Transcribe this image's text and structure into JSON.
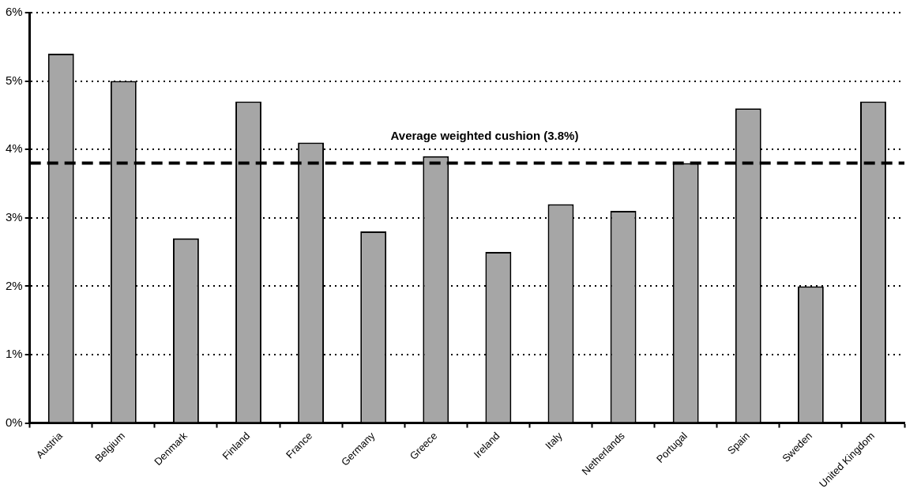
{
  "chart_data": {
    "type": "bar",
    "categories": [
      "Austria",
      "Belgium",
      "Denmark",
      "Finland",
      "France",
      "Germany",
      "Greece",
      "Ireland",
      "Italy",
      "Netherlands",
      "Portugal",
      "Spain",
      "Sweden",
      "United Kingdom"
    ],
    "values": [
      5.4,
      5.0,
      2.7,
      4.7,
      4.1,
      2.8,
      3.9,
      2.5,
      3.2,
      3.1,
      3.8,
      4.6,
      2.0,
      4.7
    ],
    "color": "#a6a6a6",
    "ylim": [
      0,
      6
    ],
    "yticks": [
      {
        "value": 0,
        "label": "0%"
      },
      {
        "value": 1,
        "label": "1%"
      },
      {
        "value": 2,
        "label": "2%"
      },
      {
        "value": 3,
        "label": "3%"
      },
      {
        "value": 4,
        "label": "4%"
      },
      {
        "value": 5,
        "label": "5%"
      },
      {
        "value": 6,
        "label": "6%"
      }
    ],
    "grid": "y",
    "legend": false,
    "ref_lines": [
      {
        "axis": "y",
        "value": 3.8,
        "label": "Average weighted cushion (3.8%)",
        "color": "#000000",
        "line_style": "dashed"
      }
    ]
  }
}
